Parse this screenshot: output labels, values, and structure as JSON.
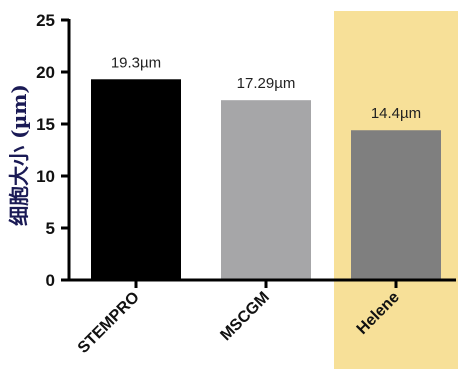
{
  "chart_data": {
    "type": "bar",
    "categories": [
      "STEMPRO",
      "MSCGM",
      "Helene"
    ],
    "values": [
      19.3,
      17.29,
      14.4
    ],
    "data_labels": [
      "19.3µm",
      "17.29µm",
      "14.4µm"
    ],
    "bar_colors": [
      "#000000",
      "#a6a6a8",
      "#7f7f7f"
    ],
    "highlight": {
      "category": "Helene",
      "color": "#f7e098"
    },
    "title": "",
    "xlabel": "",
    "ylabel": "细胞大小 (µm)",
    "ylim": [
      0,
      25
    ],
    "yticks": [
      0,
      5,
      10,
      15,
      20,
      25
    ],
    "grid": false
  }
}
